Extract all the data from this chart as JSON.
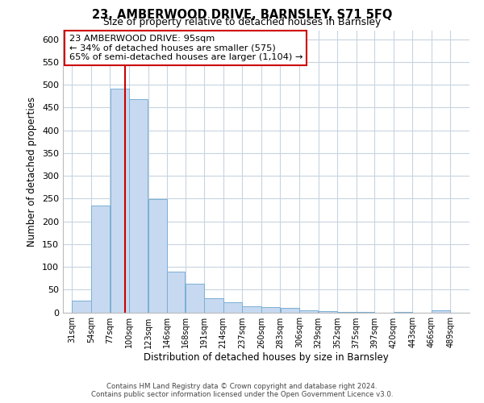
{
  "title": "23, AMBERWOOD DRIVE, BARNSLEY, S71 5FQ",
  "subtitle": "Size of property relative to detached houses in Barnsley",
  "xlabel": "Distribution of detached houses by size in Barnsley",
  "ylabel": "Number of detached properties",
  "bar_left_edges": [
    31,
    54,
    77,
    100,
    123,
    146,
    168,
    191,
    214,
    237,
    260,
    283,
    306,
    329,
    352,
    375,
    397,
    420,
    443,
    466
  ],
  "bar_widths": [
    23,
    23,
    23,
    23,
    23,
    22,
    23,
    23,
    23,
    23,
    23,
    23,
    23,
    23,
    23,
    22,
    23,
    23,
    23,
    23
  ],
  "bar_heights": [
    26,
    234,
    491,
    469,
    249,
    89,
    63,
    31,
    23,
    14,
    11,
    9,
    4,
    2,
    1,
    1,
    0,
    1,
    0,
    4
  ],
  "bar_color": "#c6d9f0",
  "bar_edgecolor": "#7bafd4",
  "tick_labels": [
    "31sqm",
    "54sqm",
    "77sqm",
    "100sqm",
    "123sqm",
    "146sqm",
    "168sqm",
    "191sqm",
    "214sqm",
    "237sqm",
    "260sqm",
    "283sqm",
    "306sqm",
    "329sqm",
    "352sqm",
    "375sqm",
    "397sqm",
    "420sqm",
    "443sqm",
    "466sqm",
    "489sqm"
  ],
  "ylim": [
    0,
    620
  ],
  "yticks": [
    0,
    50,
    100,
    150,
    200,
    250,
    300,
    350,
    400,
    450,
    500,
    550,
    600
  ],
  "property_line_x": 95,
  "property_line_color": "#cc0000",
  "annotation_text_line1": "23 AMBERWOOD DRIVE: 95sqm",
  "annotation_text_line2": "← 34% of detached houses are smaller (575)",
  "annotation_text_line3": "65% of semi-detached houses are larger (1,104) →",
  "footer_line1": "Contains HM Land Registry data © Crown copyright and database right 2024.",
  "footer_line2": "Contains public sector information licensed under the Open Government Licence v3.0.",
  "background_color": "#ffffff",
  "grid_color": "#c8d4e0"
}
